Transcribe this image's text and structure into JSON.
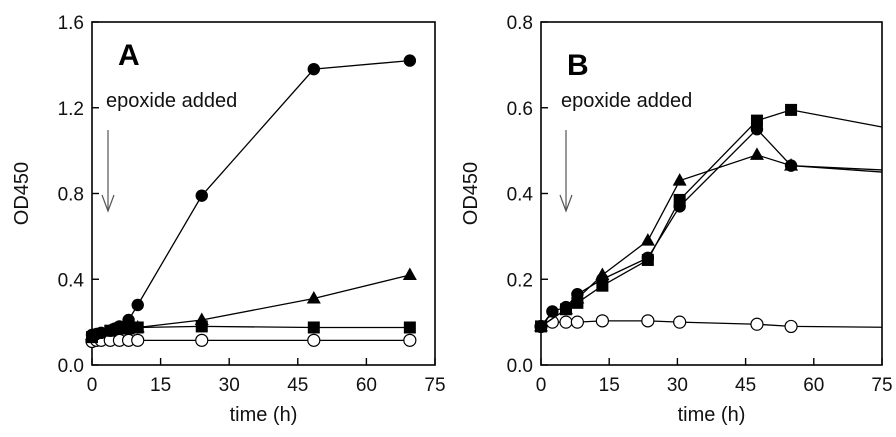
{
  "chart_data": [
    {
      "type": "line",
      "panel_label": "A",
      "xlabel": "time (h)",
      "ylabel": "OD450",
      "xlim": [
        0,
        75
      ],
      "ylim": [
        0,
        1.6
      ],
      "xticks": [
        "0",
        "15",
        "30",
        "45",
        "60",
        "75"
      ],
      "yticks": [
        "0.0",
        "0.4",
        "0.8",
        "1.2",
        "1.6"
      ],
      "annotation": {
        "text": "epoxide added",
        "arrow_x": 3.5
      },
      "series": [
        {
          "marker": "filled-circle",
          "x": [
            0,
            1,
            2,
            4,
            5,
            6,
            8,
            10,
            24,
            48.5,
            69.5
          ],
          "y": [
            0.14,
            0.145,
            0.15,
            0.16,
            0.17,
            0.18,
            0.21,
            0.28,
            0.79,
            1.38,
            1.42
          ]
        },
        {
          "marker": "filled-triangle",
          "x": [
            0,
            4,
            6,
            8,
            10,
            24,
            48.5,
            69.5
          ],
          "y": [
            0.14,
            0.16,
            0.17,
            0.17,
            0.175,
            0.21,
            0.31,
            0.42
          ]
        },
        {
          "marker": "filled-square",
          "x": [
            0,
            4,
            6,
            8,
            10,
            24,
            48.5,
            69.5
          ],
          "y": [
            0.13,
            0.16,
            0.17,
            0.17,
            0.175,
            0.18,
            0.175,
            0.175
          ]
        },
        {
          "marker": "open-circle",
          "x": [
            0,
            1,
            2,
            4,
            6,
            8,
            10,
            24,
            48.5,
            69.5
          ],
          "y": [
            0.11,
            0.115,
            0.115,
            0.115,
            0.115,
            0.115,
            0.115,
            0.115,
            0.115,
            0.115
          ]
        }
      ]
    },
    {
      "type": "line",
      "panel_label": "B",
      "xlabel": "time (h)",
      "ylabel": "OD450",
      "xlim": [
        0,
        75
      ],
      "ylim": [
        0,
        0.8
      ],
      "xticks": [
        "0",
        "15",
        "30",
        "45",
        "60",
        "75"
      ],
      "yticks": [
        "0.0",
        "0.2",
        "0.4",
        "0.6",
        "0.8"
      ],
      "annotation": {
        "text": "epoxide added",
        "arrow_x": 5.5
      },
      "series": [
        {
          "marker": "filled-circle",
          "x": [
            0,
            2.5,
            5.5,
            8,
            13.5,
            23.5,
            30.5,
            47.5,
            55,
            75
          ],
          "y": [
            0.09,
            0.125,
            0.135,
            0.165,
            0.2,
            0.25,
            0.37,
            0.55,
            0.465,
            0.455
          ]
        },
        {
          "marker": "filled-triangle",
          "x": [
            0,
            5.5,
            8,
            13.5,
            23.5,
            30.5,
            47.5,
            55,
            75
          ],
          "y": [
            0.09,
            0.13,
            0.155,
            0.21,
            0.29,
            0.43,
            0.49,
            0.465,
            0.45
          ]
        },
        {
          "marker": "filled-square",
          "x": [
            0,
            5.5,
            8,
            13.5,
            23.5,
            30.5,
            47.5,
            55,
            75
          ],
          "y": [
            0.09,
            0.13,
            0.145,
            0.185,
            0.245,
            0.385,
            0.57,
            0.595,
            0.555
          ]
        },
        {
          "marker": "open-circle",
          "x": [
            0,
            2.5,
            5.5,
            8,
            13.5,
            23.5,
            30.5,
            47.5,
            55,
            75
          ],
          "y": [
            0.09,
            0.1,
            0.1,
            0.1,
            0.103,
            0.103,
            0.1,
            0.095,
            0.09,
            0.088
          ]
        }
      ]
    }
  ]
}
